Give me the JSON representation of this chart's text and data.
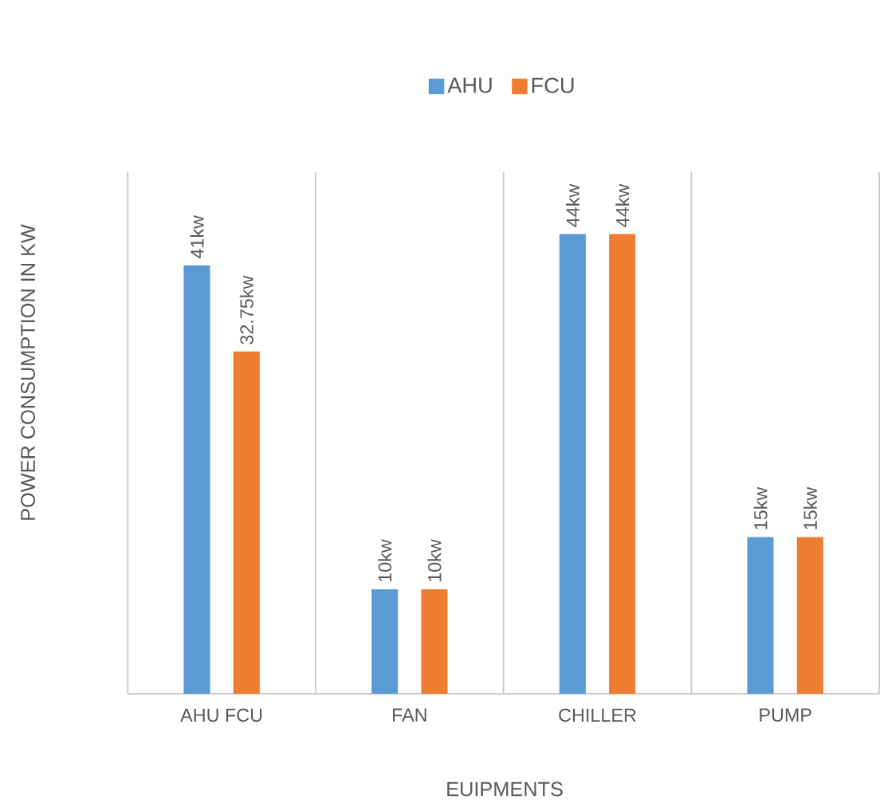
{
  "chart_data": {
    "type": "bar",
    "xlabel": "EUIPMENTS",
    "ylabel": "POWER CONSUMPTION IN KW",
    "categories": [
      "AHU FCU",
      "FAN",
      "CHILLER",
      "PUMP"
    ],
    "series": [
      {
        "name": "AHU",
        "color": "#5b9bd5",
        "values": [
          41,
          10,
          44,
          15
        ],
        "value_labels": [
          "41kw",
          "10kw",
          "44kw",
          "15kw"
        ]
      },
      {
        "name": "FCU",
        "color": "#ed7d31",
        "values": [
          32.75,
          10,
          44,
          15
        ],
        "value_labels": [
          "32.75kw",
          "10kw",
          "44kw",
          "15kw"
        ]
      }
    ],
    "legend": "top",
    "grid": "x"
  }
}
